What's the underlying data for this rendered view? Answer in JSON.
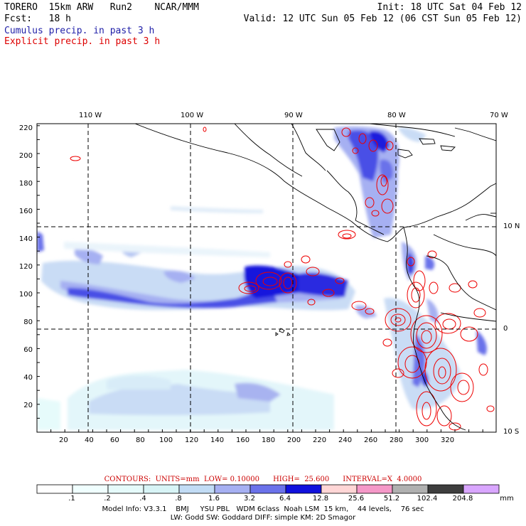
{
  "header": {
    "model": "TORERO  15km ARW   Run2    NCAR/MMM",
    "init": "Init: 18 UTC Sat 04 Feb 12",
    "fcst": "Fcst:   18 h",
    "valid": "Valid: 12 UTC Sun 05 Feb 12 (06 CST Sun 05 Feb 12)"
  },
  "legend_lines": [
    {
      "text": "Cumulus precip. in past 3 h",
      "color": "#1f1fa8"
    },
    {
      "text": "Explicit precip. in past 3 h",
      "color": "#dd0000"
    }
  ],
  "map": {
    "lon_labels": [
      "110 W",
      "100 W",
      "90 W",
      "80 W",
      "70 W"
    ],
    "lat_labels": [
      "10 N",
      "0",
      "10 S"
    ],
    "y_ticks": [
      "220",
      "200",
      "180",
      "160",
      "140",
      "120",
      "100",
      "80",
      "60",
      "40",
      "20"
    ],
    "x_ticks": [
      "20",
      "40",
      "60",
      "80",
      "100",
      "120",
      "140",
      "160",
      "180",
      "200",
      "220",
      "240",
      "260",
      "280",
      "300",
      "320"
    ]
  },
  "contour_info": "CONTOURS:  UNITS=mm  LOW= 0.10000      HIGH=  25.600      INTERVAL=X  4.0000",
  "colorbar": {
    "labels": [
      ".1",
      ".2",
      ".4",
      ".8",
      "1.6",
      "3.2",
      "6.4",
      "12.8",
      "25.6",
      "51.2",
      "102.4",
      "204.8"
    ],
    "unit": "mm",
    "colors": [
      "#ffffff",
      "#f0ffff",
      "#e6fbfb",
      "#d8f4f6",
      "#c2dcf5",
      "#a6b0f2",
      "#6b72ea",
      "#1111dd",
      "#ffd6d6",
      "#f598c8",
      "#b0b0b0",
      "#3e3e3e",
      "#d9a6ff"
    ]
  },
  "footer": {
    "line1": "Model Info: V3.3.1    BMJ     YSU PBL   WDM 6class  Noah LSM  15 km,    44 levels,    76 sec",
    "line2": "LW: Godd SW: Goddard DIFF: simple KM: 2D Smagor"
  }
}
